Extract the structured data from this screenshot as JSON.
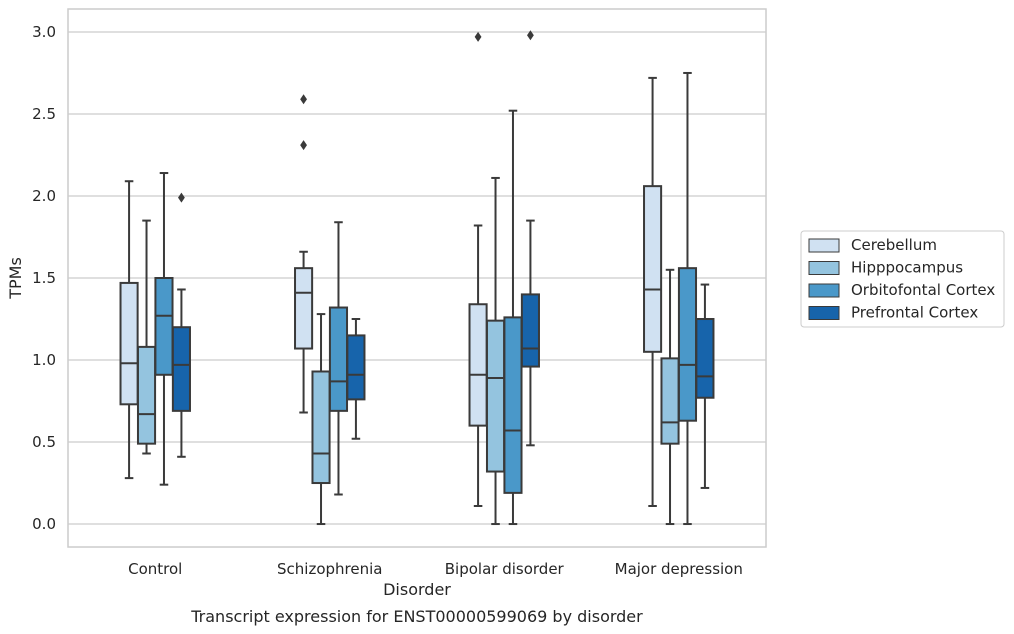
{
  "chart_data": {
    "type": "box",
    "caption": "Transcript expression for ENST00000599069 by disorder",
    "xlabel": "Disorder",
    "ylabel": "TPMs",
    "ylim": [
      -0.14,
      3.14
    ],
    "yticks": [
      0.0,
      0.5,
      1.0,
      1.5,
      2.0,
      2.5,
      3.0
    ],
    "ytick_labels": [
      "0.0",
      "0.5",
      "1.0",
      "1.5",
      "2.0",
      "2.5",
      "3.0"
    ],
    "grid": "horizontal",
    "legend_position": "right",
    "categories": [
      "Control",
      "Schizophrenia",
      "Bipolar disorder",
      "Major depression"
    ],
    "series": [
      {
        "name": "Cerebellum",
        "color": "#d0e1f2",
        "boxes": [
          {
            "whisker_low": 0.28,
            "q1": 0.73,
            "median": 0.98,
            "q3": 1.47,
            "whisker_high": 2.09,
            "outliers": []
          },
          {
            "whisker_low": 0.68,
            "q1": 1.07,
            "median": 1.41,
            "q3": 1.56,
            "whisker_high": 1.66,
            "outliers": [
              2.31,
              2.59
            ]
          },
          {
            "whisker_low": 0.11,
            "q1": 0.6,
            "median": 0.91,
            "q3": 1.34,
            "whisker_high": 1.82,
            "outliers": [
              2.97
            ]
          },
          {
            "whisker_low": 0.11,
            "q1": 1.05,
            "median": 1.43,
            "q3": 2.06,
            "whisker_high": 2.72,
            "outliers": []
          }
        ]
      },
      {
        "name": "Hipppocampus",
        "color": "#94c4df",
        "boxes": [
          {
            "whisker_low": 0.43,
            "q1": 0.49,
            "median": 0.67,
            "q3": 1.08,
            "whisker_high": 1.85,
            "outliers": []
          },
          {
            "whisker_low": 0.0,
            "q1": 0.25,
            "median": 0.43,
            "q3": 0.93,
            "whisker_high": 1.28,
            "outliers": []
          },
          {
            "whisker_low": 0.0,
            "q1": 0.32,
            "median": 0.89,
            "q3": 1.24,
            "whisker_high": 2.11,
            "outliers": []
          },
          {
            "whisker_low": 0.0,
            "q1": 0.49,
            "median": 0.62,
            "q3": 1.01,
            "whisker_high": 1.55,
            "outliers": []
          }
        ]
      },
      {
        "name": "Orbitofontal Cortex",
        "color": "#4a98c9",
        "boxes": [
          {
            "whisker_low": 0.24,
            "q1": 0.91,
            "median": 1.27,
            "q3": 1.5,
            "whisker_high": 2.14,
            "outliers": []
          },
          {
            "whisker_low": 0.18,
            "q1": 0.69,
            "median": 0.87,
            "q3": 1.32,
            "whisker_high": 1.84,
            "outliers": []
          },
          {
            "whisker_low": 0.0,
            "q1": 0.19,
            "median": 0.57,
            "q3": 1.26,
            "whisker_high": 2.52,
            "outliers": []
          },
          {
            "whisker_low": 0.0,
            "q1": 0.63,
            "median": 0.97,
            "q3": 1.56,
            "whisker_high": 2.75,
            "outliers": []
          }
        ]
      },
      {
        "name": "Prefrontal Cortex",
        "color": "#1764ab",
        "boxes": [
          {
            "whisker_low": 0.41,
            "q1": 0.69,
            "median": 0.97,
            "q3": 1.2,
            "whisker_high": 1.43,
            "outliers": [
              1.99
            ]
          },
          {
            "whisker_low": 0.52,
            "q1": 0.76,
            "median": 0.91,
            "q3": 1.15,
            "whisker_high": 1.25,
            "outliers": []
          },
          {
            "whisker_low": 0.48,
            "q1": 0.96,
            "median": 1.07,
            "q3": 1.4,
            "whisker_high": 1.85,
            "outliers": [
              2.98
            ]
          },
          {
            "whisker_low": 0.22,
            "q1": 0.77,
            "median": 0.9,
            "q3": 1.25,
            "whisker_high": 1.46,
            "outliers": []
          }
        ]
      }
    ]
  }
}
